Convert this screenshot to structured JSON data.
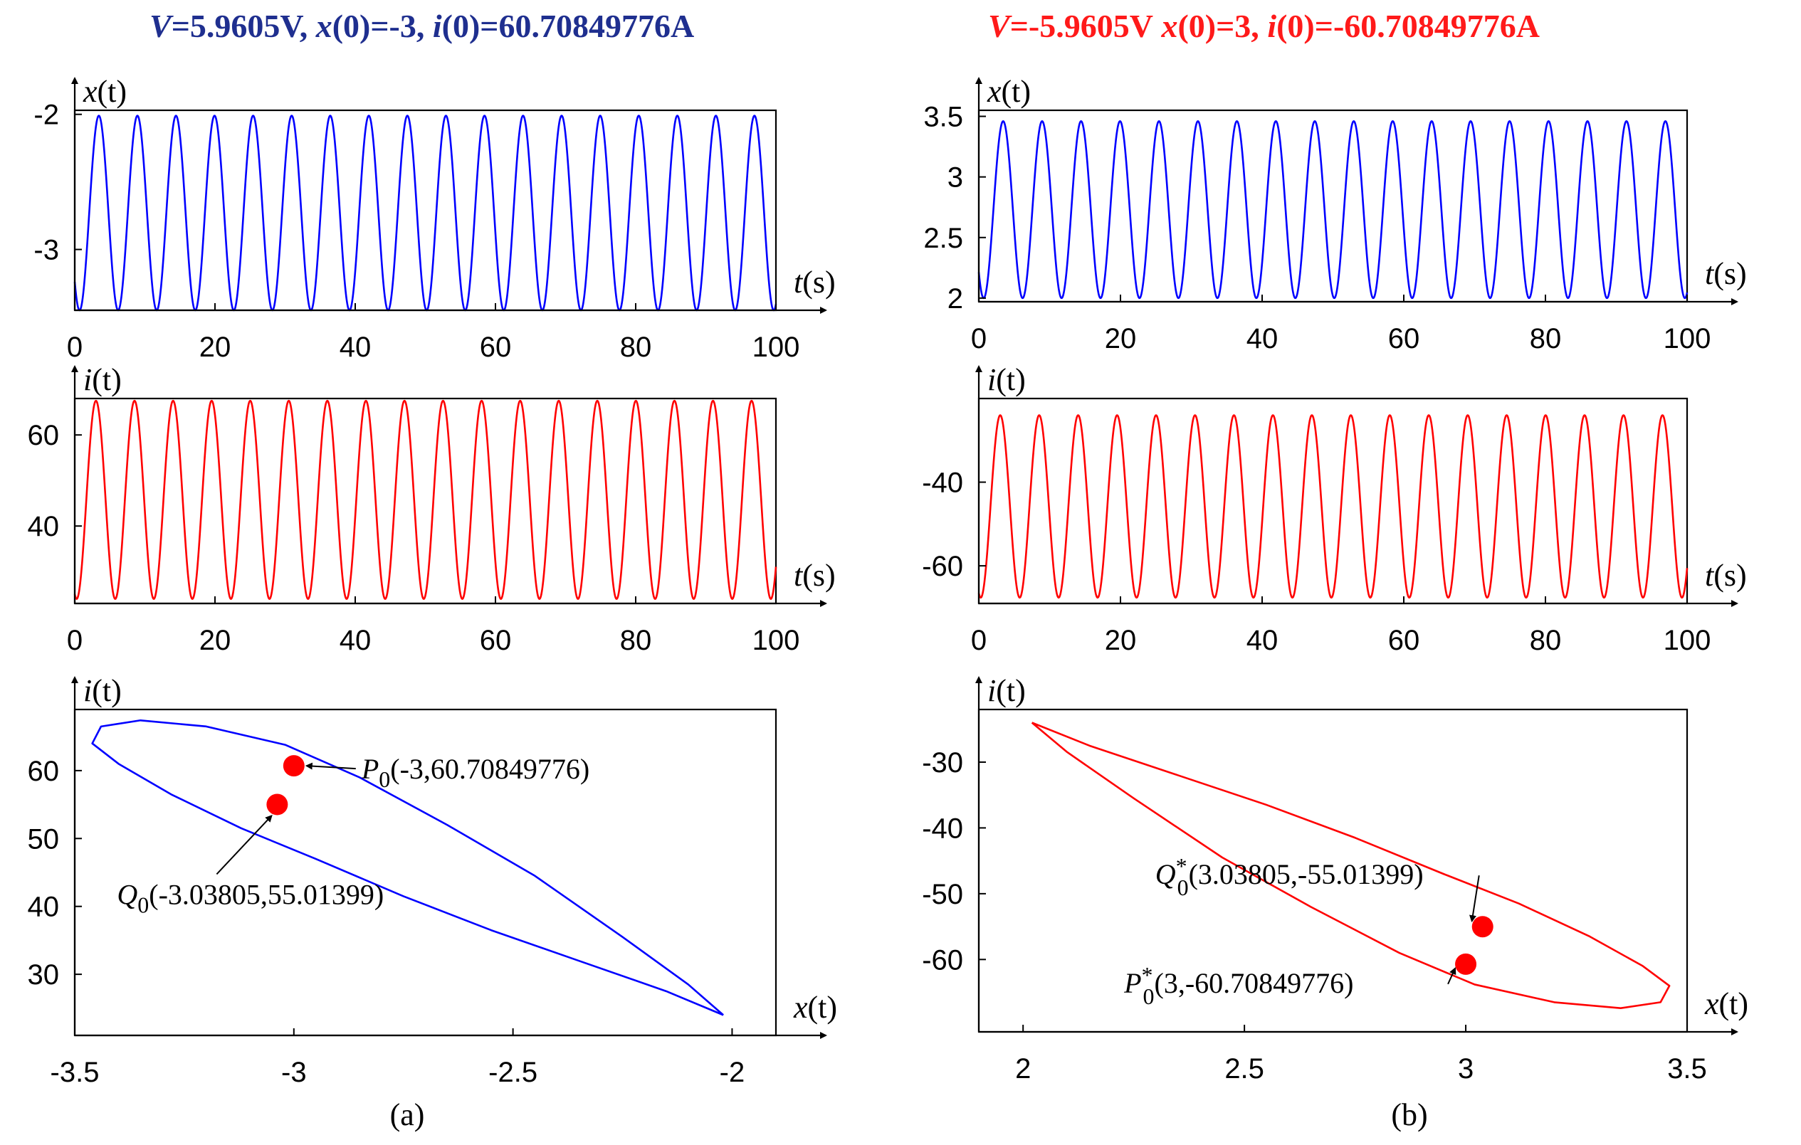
{
  "colors": {
    "header_a": "#1f2f8f",
    "header_b": "#ff1a1a",
    "blue": "#0000ff",
    "red": "#ff0000"
  },
  "panels": [
    {
      "header": {
        "v": "5.9605V,",
        "x0_prefix": " x",
        "x0": "(0)=-3,",
        "i0_prefix": " i",
        "i0": "(0)=60.70849776A"
      },
      "panel_label": "(a)",
      "charts": [
        {
          "type": "line",
          "color": "blue",
          "xlim": [
            0,
            100
          ],
          "ylim": [
            -3.45,
            -1.97
          ],
          "yticks": [
            -2,
            -3
          ],
          "ytick_labels": [
            "-2",
            "-3"
          ],
          "xticks": [
            0,
            20,
            40,
            60,
            80,
            100
          ],
          "xtick_labels": [
            "0",
            "20",
            "40",
            "60",
            "80",
            "100"
          ],
          "ylabel": {
            "var": "x",
            "arg": "(t)"
          },
          "xlabel": {
            "var": "t",
            "arg": "(s)"
          },
          "signal": {
            "center": -2.73,
            "amplitude": 0.72,
            "period": 5.5,
            "phase0": -0.375
          }
        },
        {
          "type": "line",
          "color": "red",
          "xlim": [
            0,
            100
          ],
          "ylim": [
            23,
            68
          ],
          "yticks": [
            60,
            40
          ],
          "ytick_labels": [
            "60",
            "40"
          ],
          "xticks": [
            0,
            20,
            40,
            60,
            80,
            100
          ],
          "xtick_labels": [
            "0",
            "20",
            "40",
            "60",
            "80",
            "100"
          ],
          "ylabel": {
            "var": "i",
            "arg": "(t)"
          },
          "xlabel": {
            "var": "t",
            "arg": "(s)"
          },
          "signal": {
            "center": 45.75,
            "amplitude": 21.75,
            "period": 5.5,
            "phase0": 0.7
          }
        },
        {
          "type": "phase",
          "color": "blue",
          "xlim": [
            -3.5,
            -1.9
          ],
          "ylim": [
            21,
            69
          ],
          "yticks": [
            60,
            50,
            40,
            30
          ],
          "ytick_labels": [
            "60",
            "50",
            "40",
            "30"
          ],
          "xticks": [
            -3.5,
            -3,
            -2.5,
            -2
          ],
          "xtick_labels": [
            "-3.5",
            "-3",
            "-2.5",
            "-2"
          ],
          "ylabel": {
            "var": "i",
            "arg": "(t)"
          },
          "xlabel": {
            "var": "x",
            "arg": "(t)"
          },
          "orbit": [
            [
              -2.02,
              24.0
            ],
            [
              -2.15,
              27.5
            ],
            [
              -2.35,
              32.0
            ],
            [
              -2.55,
              36.5
            ],
            [
              -2.75,
              41.5
            ],
            [
              -2.95,
              47.0
            ],
            [
              -3.12,
              51.5
            ],
            [
              -3.28,
              56.5
            ],
            [
              -3.4,
              61.0
            ],
            [
              -3.46,
              64.0
            ],
            [
              -3.44,
              66.5
            ],
            [
              -3.35,
              67.4
            ],
            [
              -3.2,
              66.5
            ],
            [
              -3.02,
              63.8
            ],
            [
              -2.85,
              59.0
            ],
            [
              -2.65,
              52.0
            ],
            [
              -2.45,
              44.5
            ],
            [
              -2.25,
              35.5
            ],
            [
              -2.1,
              28.5
            ],
            [
              -2.02,
              24.0
            ]
          ],
          "points": [
            {
              "x": -3.0,
              "y": 60.70849776,
              "name": "P",
              "sub": "0",
              "star": "",
              "coords": "(-3,60.70849776)"
            },
            {
              "x": -3.03805,
              "y": 55.01399,
              "name": "Q",
              "sub": "0",
              "star": "",
              "coords": "(-3.03805,55.01399)"
            }
          ]
        }
      ]
    },
    {
      "header": {
        "v": "-5.9605V",
        "x0_prefix": " x",
        "x0": "(0)=3,",
        "i0_prefix": " i",
        "i0": "(0)=-60.70849776A"
      },
      "panel_label": "(b)",
      "charts": [
        {
          "type": "line",
          "color": "blue",
          "xlim": [
            0,
            100
          ],
          "ylim": [
            1.97,
            3.55
          ],
          "yticks": [
            3.5,
            3,
            2.5,
            2
          ],
          "ytick_labels": [
            "3.5",
            "3",
            "2.5",
            "2"
          ],
          "xticks": [
            0,
            20,
            40,
            60,
            80,
            100
          ],
          "xtick_labels": [
            "0",
            "20",
            "40",
            "60",
            "80",
            "100"
          ],
          "ylabel": {
            "var": "x",
            "arg": "(t)"
          },
          "xlabel": {
            "var": "t",
            "arg": "(s)"
          },
          "signal": {
            "center": 2.73,
            "amplitude": 0.73,
            "period": 5.5,
            "phase0": -0.375
          }
        },
        {
          "type": "line",
          "color": "red",
          "xlim": [
            0,
            100
          ],
          "ylim": [
            -69,
            -20
          ],
          "yticks": [
            -40,
            -60
          ],
          "ytick_labels": [
            "-40",
            "-60"
          ],
          "xticks": [
            0,
            20,
            40,
            60,
            80,
            100
          ],
          "xtick_labels": [
            "0",
            "20",
            "40",
            "60",
            "80",
            "100"
          ],
          "ylabel": {
            "var": "i",
            "arg": "(t)"
          },
          "xlabel": {
            "var": "t",
            "arg": "(s)"
          },
          "signal": {
            "center": -45.8,
            "amplitude": 21.8,
            "period": 5.5,
            "phase0": 0.7
          }
        },
        {
          "type": "phase",
          "color": "red",
          "xlim": [
            1.9,
            3.5
          ],
          "ylim": [
            -71,
            -22
          ],
          "yticks": [
            -30,
            -40,
            -50,
            -60
          ],
          "ytick_labels": [
            "-30",
            "-40",
            "-50",
            "-60"
          ],
          "xticks": [
            2,
            2.5,
            3,
            3.5
          ],
          "xtick_labels": [
            "2",
            "2.5",
            "3",
            "3.5"
          ],
          "ylabel": {
            "var": "i",
            "arg": "(t)"
          },
          "xlabel": {
            "var": "x",
            "arg": "(t)"
          },
          "orbit": [
            [
              2.02,
              -24.0
            ],
            [
              2.15,
              -27.5
            ],
            [
              2.35,
              -32.0
            ],
            [
              2.55,
              -36.5
            ],
            [
              2.75,
              -41.5
            ],
            [
              2.95,
              -47.0
            ],
            [
              3.12,
              -51.5
            ],
            [
              3.28,
              -56.5
            ],
            [
              3.4,
              -61.0
            ],
            [
              3.46,
              -64.0
            ],
            [
              3.44,
              -66.5
            ],
            [
              3.35,
              -67.4
            ],
            [
              3.2,
              -66.5
            ],
            [
              3.02,
              -63.8
            ],
            [
              2.85,
              -59.0
            ],
            [
              2.65,
              -52.0
            ],
            [
              2.45,
              -44.5
            ],
            [
              2.25,
              -35.5
            ],
            [
              2.1,
              -28.5
            ],
            [
              2.02,
              -24.0
            ]
          ],
          "points": [
            {
              "x": 3.03805,
              "y": -55.01399,
              "name": "Q",
              "sub": "0",
              "star": "*",
              "coords": "(3.03805,-55.01399)"
            },
            {
              "x": 3.0,
              "y": -60.70849776,
              "name": "P",
              "sub": "0",
              "star": "*",
              "coords": "(3,-60.70849776)"
            }
          ]
        }
      ]
    }
  ]
}
